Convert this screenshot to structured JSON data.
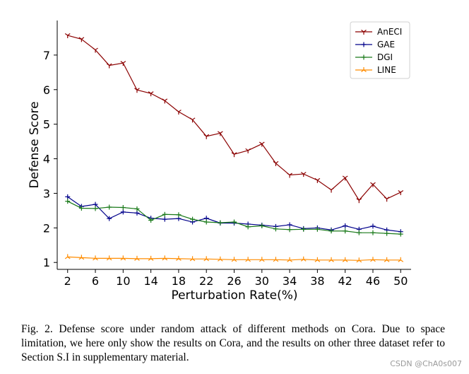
{
  "chart_data": {
    "type": "line",
    "xlabel": "Perturbation Rate(%)",
    "ylabel": "Defense Score",
    "xlim": [
      0.5,
      51.5
    ],
    "ylim": [
      0.8,
      8.0
    ],
    "x_ticks": [
      2,
      6,
      10,
      14,
      18,
      22,
      26,
      30,
      34,
      38,
      42,
      46,
      50
    ],
    "y_ticks": [
      1,
      2,
      3,
      4,
      5,
      6,
      7
    ],
    "x": [
      2,
      4,
      6,
      8,
      10,
      12,
      14,
      16,
      18,
      20,
      22,
      24,
      26,
      28,
      30,
      32,
      34,
      36,
      38,
      40,
      42,
      44,
      46,
      48,
      50
    ],
    "grid": false,
    "legend_position": "top-right",
    "series": [
      {
        "name": "AnECI",
        "color": "#8b0000",
        "marker": "tri_down",
        "values": [
          7.57,
          7.46,
          7.15,
          6.7,
          6.77,
          5.99,
          5.89,
          5.68,
          5.36,
          5.13,
          4.65,
          4.74,
          4.13,
          4.24,
          4.43,
          3.87,
          3.53,
          3.56,
          3.38,
          3.1,
          3.45,
          2.8,
          3.26,
          2.84,
          3.03
        ]
      },
      {
        "name": "GAE",
        "color": "#00008b",
        "marker": "plus",
        "values": [
          2.9,
          2.62,
          2.68,
          2.27,
          2.46,
          2.43,
          2.28,
          2.25,
          2.27,
          2.17,
          2.28,
          2.14,
          2.14,
          2.11,
          2.08,
          2.04,
          2.09,
          1.98,
          2.0,
          1.94,
          2.06,
          1.96,
          2.05,
          1.94,
          1.89
        ]
      },
      {
        "name": "DGI",
        "color": "#1a7a1a",
        "marker": "plus",
        "values": [
          2.77,
          2.57,
          2.56,
          2.6,
          2.59,
          2.55,
          2.22,
          2.39,
          2.38,
          2.25,
          2.17,
          2.15,
          2.17,
          2.03,
          2.06,
          1.97,
          1.95,
          1.96,
          1.96,
          1.91,
          1.91,
          1.86,
          1.86,
          1.84,
          1.82
        ]
      },
      {
        "name": "LINE",
        "color": "#ff8c00",
        "marker": "tri_up",
        "values": [
          1.16,
          1.14,
          1.12,
          1.12,
          1.12,
          1.11,
          1.11,
          1.12,
          1.11,
          1.1,
          1.1,
          1.09,
          1.08,
          1.08,
          1.08,
          1.08,
          1.07,
          1.09,
          1.07,
          1.07,
          1.07,
          1.06,
          1.08,
          1.07,
          1.07
        ]
      }
    ]
  },
  "caption": "Fig. 2.  Defense score under random attack of different methods on Cora. Due to space limitation, we here only show the results on Cora, and the results on other three dataset refer to Section S.I in supplementary material.",
  "watermark": "CSDN @ChA0s007"
}
